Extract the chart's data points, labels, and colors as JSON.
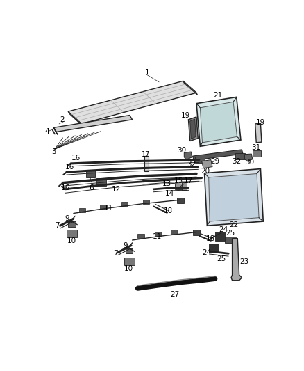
{
  "background_color": "#ffffff",
  "fig_width": 4.38,
  "fig_height": 5.33,
  "dpi": 100,
  "label_fs": 7.5,
  "line_color": "#222222",
  "fill_light": "#e8e8e8",
  "fill_dark": "#444444",
  "fill_mid": "#888888"
}
